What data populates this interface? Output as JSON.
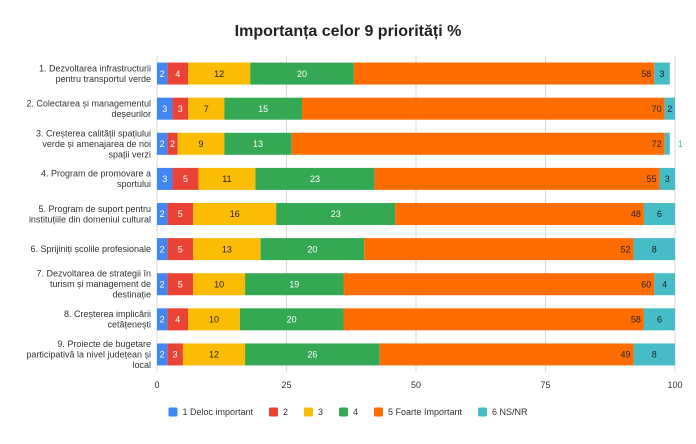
{
  "chart_data": {
    "type": "bar",
    "orientation": "horizontal",
    "stacked": true,
    "title": "Importanța celor 9 priorități %",
    "xlim": [
      0,
      100
    ],
    "x_ticks": [
      0,
      25,
      50,
      75,
      100
    ],
    "grid": true,
    "legend_position": "bottom",
    "categories": [
      [
        "1. Dezvoltarea infrastructurii",
        "pentru transportul verde"
      ],
      [
        "2. Colectarea și managementul",
        "deșeurilor"
      ],
      [
        "3. Creșterea calității spațiului",
        "verde și amenajarea de noi",
        "spații verzi"
      ],
      [
        "4. Program de promovare a",
        "sportului"
      ],
      [
        "5. Program de suport pentru",
        "instituțiile din domeniul cultural"
      ],
      [
        "6. Sprijiniți școlile profesionale"
      ],
      [
        "7. Dezvoltarea de strategii în",
        "turism și management de",
        "destinație"
      ],
      [
        "8. Creșterea implicării",
        "cetățenești"
      ],
      [
        "9. Proiecte de bugetare",
        "participativă la nivel județean și",
        "local"
      ]
    ],
    "series": [
      {
        "name": "1 Deloc important",
        "color": "#4285f4",
        "values": [
          2,
          3,
          2,
          3,
          2,
          2,
          2,
          2,
          2
        ]
      },
      {
        "name": "2",
        "color": "#ea4335",
        "values": [
          4,
          3,
          2,
          5,
          5,
          5,
          5,
          4,
          3
        ]
      },
      {
        "name": "3",
        "color": "#fbbc04",
        "values": [
          12,
          7,
          9,
          11,
          16,
          13,
          10,
          10,
          12
        ]
      },
      {
        "name": "4",
        "color": "#34a853",
        "values": [
          20,
          15,
          13,
          23,
          23,
          20,
          19,
          20,
          26
        ]
      },
      {
        "name": "5 Foarte Important",
        "color": "#ff6d01",
        "values": [
          58,
          70,
          72,
          55,
          48,
          52,
          60,
          58,
          49
        ]
      },
      {
        "name": "6 NS/NR",
        "color": "#46bdc6",
        "values": [
          3,
          2,
          1,
          3,
          6,
          8,
          4,
          6,
          8
        ]
      }
    ]
  }
}
